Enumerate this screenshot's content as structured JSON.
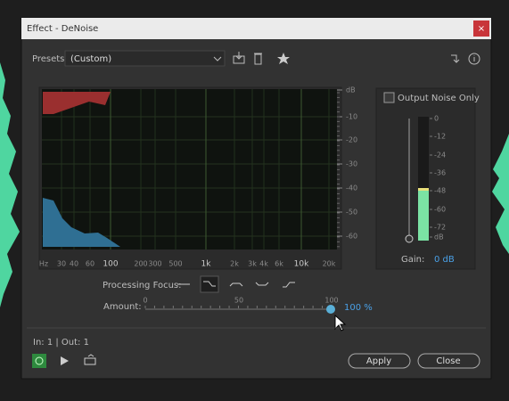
{
  "title_bar": {
    "title": "Effect - DeNoise",
    "close": "×"
  },
  "presets": {
    "label": "Presets:",
    "value": "(Custom)"
  },
  "spectrum": {
    "y_labels": [
      "dB",
      "-10",
      "-20",
      "-30",
      "-40",
      "-50",
      "-60"
    ],
    "x_labels": [
      "Hz",
      "30",
      "40",
      "60",
      "100",
      "200",
      "300",
      "500",
      "1k",
      "2k",
      "3k",
      "4k",
      "6k",
      "10k",
      "20k"
    ]
  },
  "output_panel": {
    "checkbox_label": "Output Noise Only",
    "meter_labels": [
      "0",
      "-12",
      "-24",
      "-36",
      "-48",
      "-60",
      "-72",
      "dB"
    ],
    "gain_label": "Gain:",
    "gain_value": "0 dB"
  },
  "processing_focus": {
    "label": "Processing Focus:"
  },
  "amount": {
    "label": "Amount:",
    "scale_labels": [
      "0",
      "50",
      "100"
    ],
    "value": "100 %"
  },
  "status": "In: 1 | Out: 1",
  "buttons": {
    "apply": "Apply",
    "close": "Close"
  }
}
